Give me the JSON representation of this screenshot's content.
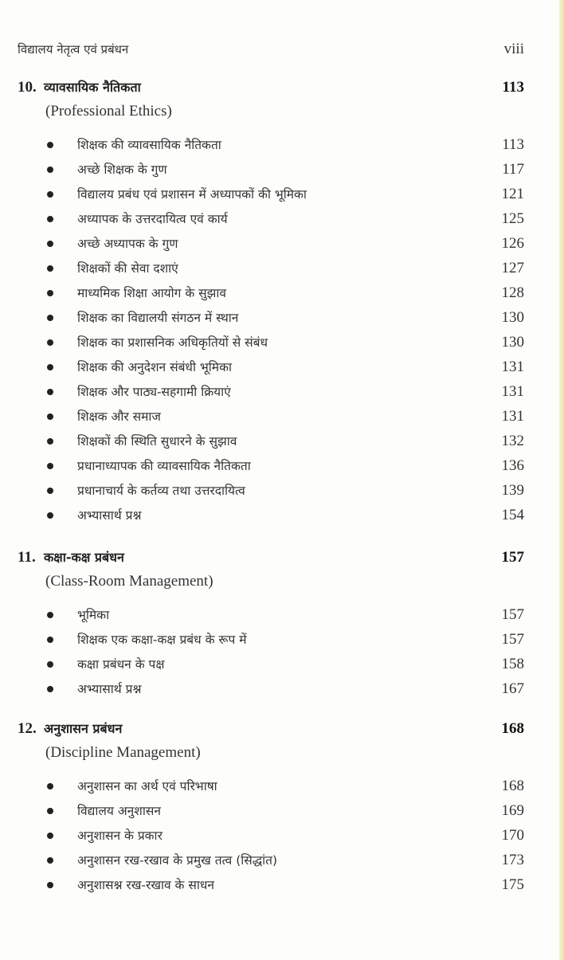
{
  "header": {
    "title": "विद्यालय नेतृत्व एवं प्रबंधन",
    "page": "viii"
  },
  "chapters": [
    {
      "number": "10.",
      "title": "व्यावसायिक नैतिकता",
      "english": "(Professional Ethics)",
      "page": "113",
      "items": [
        {
          "text": "शिक्षक की व्यावसायिक नैतिकता",
          "page": "113"
        },
        {
          "text": "अच्छे शिक्षक के गुण",
          "page": "117"
        },
        {
          "text": "विद्यालय प्रबंध एवं प्रशासन में अध्यापकों की भूमिका",
          "page": "121"
        },
        {
          "text": "अध्यापक के उत्तरदायित्व एवं कार्य",
          "page": "125"
        },
        {
          "text": "अच्छे अध्यापक के गुण",
          "page": "126"
        },
        {
          "text": "शिक्षकों की सेवा दशाएं",
          "page": "127"
        },
        {
          "text": "माध्यमिक शिक्षा आयोग के सुझाव",
          "page": "128"
        },
        {
          "text": "शिक्षक का विद्यालयी संगठन में स्थान",
          "page": "130"
        },
        {
          "text": "शिक्षक का प्रशासनिक अधिकृतियों से संबंध",
          "page": "130"
        },
        {
          "text": "शिक्षक की अनुदेशन संबंधी भूमिका",
          "page": "131"
        },
        {
          "text": "शिक्षक और पाठ्य-सहगामी क्रियाएं",
          "page": "131"
        },
        {
          "text": "शिक्षक और समाज",
          "page": "131"
        },
        {
          "text": "शिक्षकों की स्थिति सुधारने के सुझाव",
          "page": "132"
        },
        {
          "text": "प्रधानाध्यापक की व्यावसायिक नैतिकता",
          "page": "136"
        },
        {
          "text": "प्रधानाचार्य के कर्तव्य तथा उत्तरदायित्व",
          "page": "139"
        },
        {
          "text": "अभ्यासार्थ प्रश्न",
          "page": "154"
        }
      ]
    },
    {
      "number": "11.",
      "title": "कक्षा-कक्ष प्रबंधन",
      "english": "(Class-Room Management)",
      "page": "157",
      "items": [
        {
          "text": "भूमिका",
          "page": "157"
        },
        {
          "text": "शिक्षक एक कक्षा-कक्ष प्रबंध के रूप में",
          "page": "157"
        },
        {
          "text": "कक्षा प्रबंधन के पक्ष",
          "page": "158"
        },
        {
          "text": "अभ्यासार्थ प्रश्न",
          "page": "167"
        }
      ]
    },
    {
      "number": "12.",
      "title": "अनुशासन प्रबंधन",
      "english": "(Discipline Management)",
      "page": "168",
      "items": [
        {
          "text": "अनुशासन का अर्थ एवं परिभाषा",
          "page": "168"
        },
        {
          "text": "विद्यालय अनुशासन",
          "page": "169"
        },
        {
          "text": "अनुशासन के प्रकार",
          "page": "170"
        },
        {
          "text": "अनुशासन रख-रखाव के प्रमुख तत्व (सिद्धांत)",
          "page": "173"
        },
        {
          "text": "अनुशासश्न रख-रखाव के साधन",
          "page": "175"
        }
      ]
    }
  ]
}
